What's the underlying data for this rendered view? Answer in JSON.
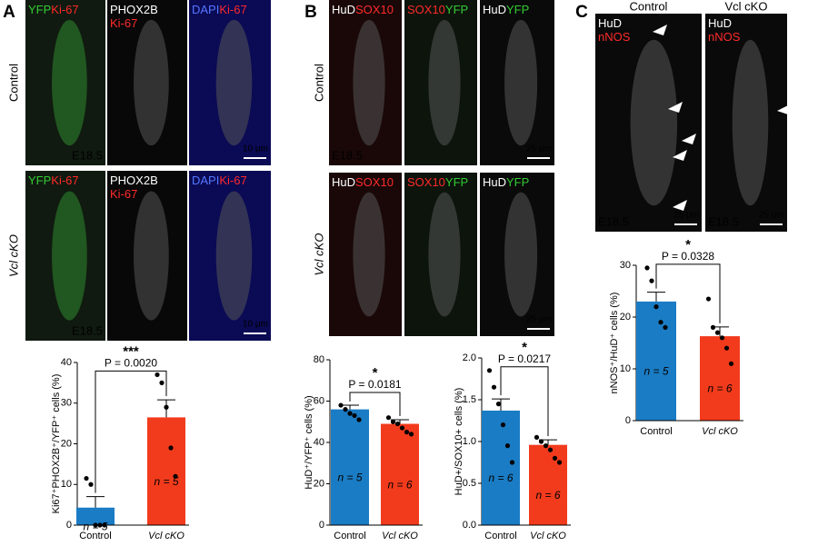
{
  "micrographs": {
    "A": {
      "letter": "A",
      "rows": [
        "Control",
        "Vcl cKO"
      ],
      "stage": "E18.5",
      "scale": "10 μm",
      "columns": [
        [
          [
            {
              "t": "YFP",
              "c": "#33cc33"
            },
            {
              "t": "Ki-67",
              "c": "#ff2a2a"
            }
          ]
        ],
        [
          [
            {
              "t": "PHOX2B",
              "c": "#ffffff"
            }
          ],
          [
            {
              "t": "Ki-67",
              "c": "#ff2a2a"
            }
          ]
        ],
        [
          [
            {
              "t": "DAPI",
              "c": "#5577ff"
            },
            {
              "t": "Ki-67",
              "c": "#ff2a2a"
            }
          ]
        ]
      ]
    },
    "B": {
      "letter": "B",
      "rows": [
        "Control",
        "Vcl cKO"
      ],
      "stage": "E18.5",
      "scale": "25 μm",
      "columns": [
        [
          [
            {
              "t": "HuD",
              "c": "#ffffff"
            },
            {
              "t": "SOX10",
              "c": "#ff2a2a"
            }
          ]
        ],
        [
          [
            {
              "t": "SOX10",
              "c": "#ff2a2a"
            },
            {
              "t": "YFP",
              "c": "#33cc33"
            }
          ]
        ],
        [
          [
            {
              "t": "HuD",
              "c": "#ffffff"
            },
            {
              "t": "YFP",
              "c": "#33cc33"
            }
          ]
        ]
      ]
    },
    "C": {
      "letter": "C",
      "rows": [
        "Control",
        "Vcl cKO"
      ],
      "stage": "E18.5",
      "scale": "25 μm",
      "columns": [
        [
          [
            {
              "t": "HuD",
              "c": "#ffffff"
            }
          ],
          [
            {
              "t": "nNOS",
              "c": "#ff2a2a"
            }
          ]
        ],
        [
          [
            {
              "t": "HuD",
              "c": "#ffffff"
            }
          ],
          [
            {
              "t": "nNOS",
              "c": "#ff2a2a"
            }
          ]
        ]
      ]
    }
  },
  "chart_data": [
    {
      "type": "bar",
      "ylabel": "Ki67⁺PHOX2B⁺/YFP⁺ cells (%)",
      "categories": [
        "Control",
        "Vcl cKO"
      ],
      "values": [
        4.3,
        26.5
      ],
      "errors": [
        2.7,
        4.3
      ],
      "colors": [
        "#1a7cc4",
        "#f23b1c"
      ],
      "points": [
        [
          11.5,
          10,
          0,
          0,
          0
        ],
        [
          37,
          35,
          29,
          19,
          12
        ]
      ],
      "n_labels": [
        "n = 5",
        "n = 5"
      ],
      "p_label": "P = 0.0020",
      "significance": "***",
      "ylim": [
        0,
        40
      ],
      "yticks": [
        0,
        10,
        20,
        30,
        40
      ]
    },
    {
      "type": "bar",
      "ylabel": "HuD⁺/YFP⁺ cells (%)",
      "categories": [
        "Control",
        "Vcl cKO"
      ],
      "values": [
        56,
        49
      ],
      "errors": [
        2,
        2
      ],
      "colors": [
        "#1a7cc4",
        "#f23b1c"
      ],
      "points": [
        [
          58,
          56,
          54,
          53,
          51
        ],
        [
          52,
          50,
          49,
          47,
          45,
          44
        ]
      ],
      "n_labels": [
        "n = 5",
        "n = 6"
      ],
      "p_label": "P = 0.0181",
      "significance": "*",
      "ylim": [
        0,
        80
      ],
      "yticks": [
        0,
        20,
        40,
        60,
        80
      ]
    },
    {
      "type": "bar",
      "ylabel": "HuD+/SOX10+ cells (%)",
      "categories": [
        "Control",
        "Vcl cKO"
      ],
      "values": [
        1.37,
        0.96
      ],
      "errors": [
        0.14,
        0.06
      ],
      "colors": [
        "#1a7cc4",
        "#f23b1c"
      ],
      "points": [
        [
          1.85,
          1.65,
          1.45,
          1.2,
          0.95,
          0.75
        ],
        [
          1.05,
          1.0,
          0.95,
          0.9,
          0.8,
          0.75
        ]
      ],
      "n_labels": [
        "n = 6",
        "n = 6"
      ],
      "p_label": "P = 0.0217",
      "significance": "*",
      "ylim": [
        0,
        2
      ],
      "yticks": [
        {
          "value": 0,
          "label": "0.0"
        },
        0.5,
        {
          "value": 1,
          "label": "1.0"
        },
        1.5,
        {
          "value": 2,
          "label": "2.0"
        }
      ]
    },
    {
      "type": "bar",
      "ylabel": "nNOS⁺/HuD⁺ cells (%)",
      "categories": [
        "Control",
        "Vcl cKO"
      ],
      "values": [
        23,
        16.3
      ],
      "errors": [
        1.8,
        1.8
      ],
      "colors": [
        "#1a7cc4",
        "#f23b1c"
      ],
      "points": [
        [
          29.5,
          27,
          22,
          19,
          18
        ],
        [
          23.5,
          18,
          17,
          16,
          14,
          11
        ]
      ],
      "n_labels": [
        "n = 5",
        "n = 6"
      ],
      "p_label": "P = 0.0328",
      "significance": "*",
      "ylim": [
        0,
        30
      ],
      "yticks": [
        0,
        10,
        20,
        30
      ]
    }
  ]
}
